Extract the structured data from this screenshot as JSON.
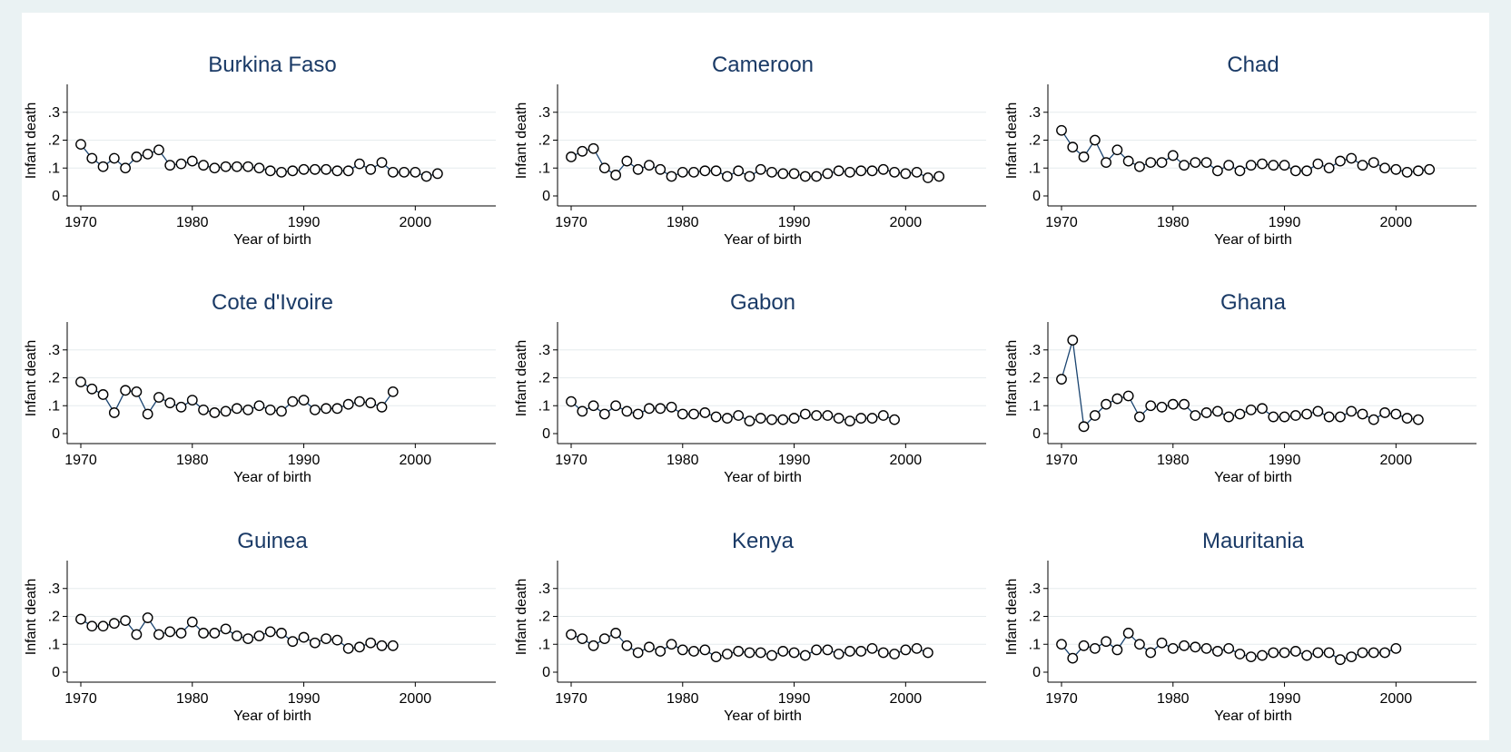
{
  "chart_data": [
    {
      "type": "line",
      "title": "Burkina Faso",
      "xlabel": "Year of birth",
      "ylabel": "Infant death",
      "xlim": [
        1970,
        2006
      ],
      "ylim": [
        0,
        0.4
      ],
      "x": [
        1970,
        1971,
        1972,
        1973,
        1974,
        1975,
        1976,
        1977,
        1978,
        1979,
        1980,
        1981,
        1982,
        1983,
        1984,
        1985,
        1986,
        1987,
        1988,
        1989,
        1990,
        1991,
        1992,
        1993,
        1994,
        1995,
        1996,
        1997,
        1998,
        1999,
        2000,
        2001,
        2002
      ],
      "y": [
        0.185,
        0.135,
        0.105,
        0.135,
        0.1,
        0.14,
        0.15,
        0.165,
        0.11,
        0.115,
        0.125,
        0.11,
        0.1,
        0.105,
        0.105,
        0.105,
        0.1,
        0.09,
        0.085,
        0.09,
        0.095,
        0.095,
        0.095,
        0.09,
        0.09,
        0.115,
        0.095,
        0.12,
        0.085,
        0.085,
        0.085,
        0.07,
        0.08
      ]
    },
    {
      "type": "line",
      "title": "Cameroon",
      "xlabel": "Year of birth",
      "ylabel": "Infant death",
      "xlim": [
        1970,
        2006
      ],
      "ylim": [
        0,
        0.4
      ],
      "x": [
        1970,
        1971,
        1972,
        1973,
        1974,
        1975,
        1976,
        1977,
        1978,
        1979,
        1980,
        1981,
        1982,
        1983,
        1984,
        1985,
        1986,
        1987,
        1988,
        1989,
        1990,
        1991,
        1992,
        1993,
        1994,
        1995,
        1996,
        1997,
        1998,
        1999,
        2000,
        2001,
        2002,
        2003
      ],
      "y": [
        0.14,
        0.16,
        0.17,
        0.1,
        0.075,
        0.125,
        0.095,
        0.11,
        0.095,
        0.07,
        0.085,
        0.085,
        0.09,
        0.09,
        0.07,
        0.09,
        0.07,
        0.095,
        0.085,
        0.08,
        0.08,
        0.07,
        0.07,
        0.08,
        0.09,
        0.085,
        0.09,
        0.09,
        0.095,
        0.085,
        0.08,
        0.085,
        0.065,
        0.07
      ]
    },
    {
      "type": "line",
      "title": "Chad",
      "xlabel": "Year of birth",
      "ylabel": "Infant death",
      "xlim": [
        1970,
        2006
      ],
      "ylim": [
        0,
        0.4
      ],
      "x": [
        1970,
        1971,
        1972,
        1973,
        1974,
        1975,
        1976,
        1977,
        1978,
        1979,
        1980,
        1981,
        1982,
        1983,
        1984,
        1985,
        1986,
        1987,
        1988,
        1989,
        1990,
        1991,
        1992,
        1993,
        1994,
        1995,
        1996,
        1997,
        1998,
        1999,
        2000,
        2001,
        2002,
        2003
      ],
      "y": [
        0.235,
        0.175,
        0.14,
        0.2,
        0.12,
        0.165,
        0.125,
        0.105,
        0.12,
        0.12,
        0.145,
        0.11,
        0.12,
        0.12,
        0.09,
        0.11,
        0.09,
        0.11,
        0.115,
        0.11,
        0.11,
        0.09,
        0.09,
        0.115,
        0.1,
        0.125,
        0.135,
        0.11,
        0.12,
        0.1,
        0.095,
        0.085,
        0.09,
        0.095
      ]
    },
    {
      "type": "line",
      "title": "Cote d'Ivoire",
      "xlabel": "Year of birth",
      "ylabel": "Infant death",
      "xlim": [
        1970,
        2006
      ],
      "ylim": [
        0,
        0.4
      ],
      "x": [
        1970,
        1971,
        1972,
        1973,
        1974,
        1975,
        1976,
        1977,
        1978,
        1979,
        1980,
        1981,
        1982,
        1983,
        1984,
        1985,
        1986,
        1987,
        1988,
        1989,
        1990,
        1991,
        1992,
        1993,
        1994,
        1995,
        1996,
        1997,
        1998
      ],
      "y": [
        0.185,
        0.16,
        0.14,
        0.075,
        0.155,
        0.15,
        0.07,
        0.13,
        0.11,
        0.095,
        0.12,
        0.085,
        0.075,
        0.08,
        0.09,
        0.085,
        0.1,
        0.085,
        0.08,
        0.115,
        0.12,
        0.085,
        0.09,
        0.09,
        0.105,
        0.115,
        0.11,
        0.095,
        0.15
      ]
    },
    {
      "type": "line",
      "title": "Gabon",
      "xlabel": "Year of birth",
      "ylabel": "Infant death",
      "xlim": [
        1970,
        2006
      ],
      "ylim": [
        0,
        0.4
      ],
      "x": [
        1970,
        1971,
        1972,
        1973,
        1974,
        1975,
        1976,
        1977,
        1978,
        1979,
        1980,
        1981,
        1982,
        1983,
        1984,
        1985,
        1986,
        1987,
        1988,
        1989,
        1990,
        1991,
        1992,
        1993,
        1994,
        1995,
        1996,
        1997,
        1998,
        1999
      ],
      "y": [
        0.115,
        0.08,
        0.1,
        0.07,
        0.1,
        0.08,
        0.07,
        0.09,
        0.09,
        0.095,
        0.07,
        0.07,
        0.075,
        0.06,
        0.055,
        0.065,
        0.045,
        0.055,
        0.05,
        0.05,
        0.055,
        0.07,
        0.065,
        0.065,
        0.055,
        0.045,
        0.055,
        0.055,
        0.065,
        0.05
      ]
    },
    {
      "type": "line",
      "title": "Ghana",
      "xlabel": "Year of birth",
      "ylabel": "Infant death",
      "xlim": [
        1970,
        2006
      ],
      "ylim": [
        0,
        0.4
      ],
      "x": [
        1970,
        1971,
        1972,
        1973,
        1974,
        1975,
        1976,
        1977,
        1978,
        1979,
        1980,
        1981,
        1982,
        1983,
        1984,
        1985,
        1986,
        1987,
        1988,
        1989,
        1990,
        1991,
        1992,
        1993,
        1994,
        1995,
        1996,
        1997,
        1998,
        1999,
        2000,
        2001,
        2002
      ],
      "y": [
        0.195,
        0.335,
        0.025,
        0.065,
        0.105,
        0.125,
        0.135,
        0.06,
        0.1,
        0.095,
        0.105,
        0.105,
        0.065,
        0.075,
        0.08,
        0.06,
        0.07,
        0.085,
        0.09,
        0.06,
        0.06,
        0.065,
        0.07,
        0.08,
        0.06,
        0.06,
        0.08,
        0.07,
        0.05,
        0.075,
        0.07,
        0.055,
        0.05
      ]
    },
    {
      "type": "line",
      "title": "Guinea",
      "xlabel": "Year of birth",
      "ylabel": "Infant death",
      "xlim": [
        1970,
        2006
      ],
      "ylim": [
        0,
        0.4
      ],
      "x": [
        1970,
        1971,
        1972,
        1973,
        1974,
        1975,
        1976,
        1977,
        1978,
        1979,
        1980,
        1981,
        1982,
        1983,
        1984,
        1985,
        1986,
        1987,
        1988,
        1989,
        1990,
        1991,
        1992,
        1993,
        1994,
        1995,
        1996,
        1997,
        1998
      ],
      "y": [
        0.19,
        0.165,
        0.165,
        0.175,
        0.185,
        0.135,
        0.195,
        0.135,
        0.145,
        0.14,
        0.18,
        0.14,
        0.14,
        0.155,
        0.13,
        0.12,
        0.13,
        0.145,
        0.14,
        0.11,
        0.125,
        0.105,
        0.12,
        0.115,
        0.085,
        0.09,
        0.105,
        0.095,
        0.095
      ]
    },
    {
      "type": "line",
      "title": "Kenya",
      "xlabel": "Year of birth",
      "ylabel": "Infant death",
      "xlim": [
        1970,
        2006
      ],
      "ylim": [
        0,
        0.4
      ],
      "x": [
        1970,
        1971,
        1972,
        1973,
        1974,
        1975,
        1976,
        1977,
        1978,
        1979,
        1980,
        1981,
        1982,
        1983,
        1984,
        1985,
        1986,
        1987,
        1988,
        1989,
        1990,
        1991,
        1992,
        1993,
        1994,
        1995,
        1996,
        1997,
        1998,
        1999,
        2000,
        2001,
        2002
      ],
      "y": [
        0.135,
        0.12,
        0.095,
        0.12,
        0.14,
        0.095,
        0.07,
        0.09,
        0.075,
        0.1,
        0.08,
        0.075,
        0.08,
        0.055,
        0.065,
        0.075,
        0.07,
        0.07,
        0.06,
        0.075,
        0.07,
        0.06,
        0.08,
        0.08,
        0.065,
        0.075,
        0.075,
        0.085,
        0.07,
        0.065,
        0.08,
        0.085,
        0.07
      ]
    },
    {
      "type": "line",
      "title": "Mauritania",
      "xlabel": "Year of birth",
      "ylabel": "Infant death",
      "xlim": [
        1970,
        2006
      ],
      "ylim": [
        0,
        0.4
      ],
      "x": [
        1970,
        1971,
        1972,
        1973,
        1974,
        1975,
        1976,
        1977,
        1978,
        1979,
        1980,
        1981,
        1982,
        1983,
        1984,
        1985,
        1986,
        1987,
        1988,
        1989,
        1990,
        1991,
        1992,
        1993,
        1994,
        1995,
        1996,
        1997,
        1998,
        1999,
        2000
      ],
      "y": [
        0.1,
        0.05,
        0.095,
        0.085,
        0.11,
        0.08,
        0.14,
        0.1,
        0.07,
        0.105,
        0.085,
        0.095,
        0.09,
        0.085,
        0.075,
        0.085,
        0.065,
        0.055,
        0.06,
        0.07,
        0.07,
        0.075,
        0.06,
        0.07,
        0.07,
        0.045,
        0.055,
        0.07,
        0.07,
        0.07,
        0.085
      ]
    }
  ],
  "axis": {
    "y_ticks": [
      0,
      0.1,
      0.2,
      0.3
    ],
    "y_tick_labels": [
      "0",
      ".1",
      ".2",
      ".3"
    ],
    "x_ticks": [
      1970,
      1980,
      1990,
      2000
    ],
    "x_tick_labels": [
      "1970",
      "1980",
      "1990",
      "2000"
    ]
  }
}
